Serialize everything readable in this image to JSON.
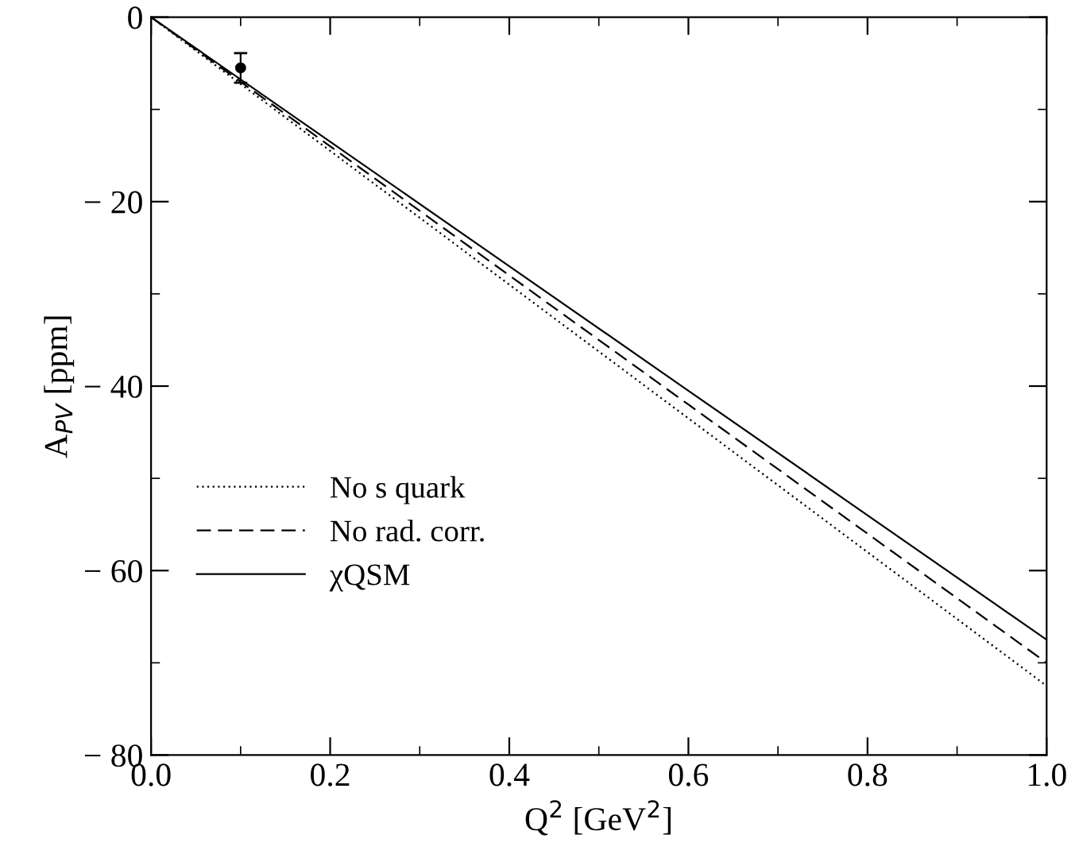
{
  "chart_data": {
    "type": "line",
    "xlabel": "Q$^{2}$ [GeV$^{2}$]",
    "ylabel": "A$_{PV}$ [ppm]",
    "xlim": [
      0.0,
      1.0
    ],
    "ylim": [
      -80,
      0
    ],
    "xticks": [
      {
        "value": 0.0,
        "label": "0.0"
      },
      0.2,
      0.4,
      0.6,
      0.8,
      {
        "value": 1.0,
        "label": "1.0"
      }
    ],
    "yticks": [
      -80,
      -60,
      -40,
      -20,
      0
    ],
    "x": [
      0.0,
      0.2,
      0.4,
      0.6,
      0.8,
      1.0
    ],
    "series": [
      {
        "name": "No s quark",
        "color": "#000000",
        "line_style": "dotted",
        "values": [
          0,
          -14.5,
          -29,
          -43.5,
          -58,
          -72.5
        ]
      },
      {
        "name": "No rad. corr.",
        "color": "#000000",
        "line_style": "dashed",
        "values": [
          0,
          -14,
          -28,
          -42,
          -56,
          -70
        ]
      },
      {
        "name": "χQSM",
        "color": "#000000",
        "line_style": "solid",
        "values": [
          0,
          -13.5,
          -27,
          -40.5,
          -54,
          -67.5
        ]
      },
      {
        "type": "scatter",
        "color": "#000000",
        "marker": "circle",
        "x": [
          0.1
        ],
        "values": [
          -5.5
        ],
        "errors": [
          1.6
        ]
      }
    ],
    "legend": "center left",
    "grid": false
  }
}
